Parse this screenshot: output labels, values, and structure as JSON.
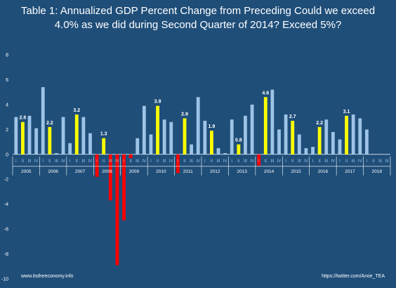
{
  "chart_data": {
    "type": "bar",
    "title_line1": "Table 1: Annualized GDP Percent Change from Preceding Could we exceed",
    "title_line2": "4.0% as we did during Second Quarter of 2014? Exceed 5%?",
    "xlabel": "",
    "ylabel": "",
    "ylim": [
      -10,
      8
    ],
    "yticks": [
      "8",
      "6",
      "4",
      "2",
      "0",
      "-2",
      "-4",
      "-6",
      "-8",
      "-10"
    ],
    "quarter_labels": [
      "I",
      "II",
      "III",
      "IV"
    ],
    "years": [
      "2005",
      "2006",
      "2007",
      "2008",
      "2009",
      "2010",
      "2011",
      "2012",
      "2013",
      "2014",
      "2015",
      "2016",
      "2017",
      "2018"
    ],
    "values": [
      3.0,
      2.6,
      3.1,
      2.1,
      5.4,
      2.2,
      0.1,
      3.0,
      0.9,
      3.2,
      3.0,
      1.7,
      -1.8,
      1.3,
      -3.7,
      -8.9,
      -5.3,
      -0.3,
      1.3,
      3.9,
      1.6,
      3.9,
      2.8,
      2.6,
      -1.5,
      2.9,
      0.8,
      4.6,
      2.7,
      1.9,
      0.5,
      0.1,
      2.8,
      0.8,
      3.1,
      4.0,
      -0.9,
      4.6,
      5.2,
      2.0,
      3.2,
      2.7,
      1.6,
      0.5,
      0.6,
      2.2,
      2.8,
      1.8,
      1.2,
      3.1,
      3.2,
      2.9,
      2.0
    ],
    "data_labels": [
      {
        "index": 1,
        "text": "2.6"
      },
      {
        "index": 5,
        "text": "2.2"
      },
      {
        "index": 9,
        "text": "3.2"
      },
      {
        "index": 13,
        "text": "1.3"
      },
      {
        "index": 21,
        "text": "3.9"
      },
      {
        "index": 25,
        "text": "2.9"
      },
      {
        "index": 29,
        "text": "1.9"
      },
      {
        "index": 33,
        "text": "0.8"
      },
      {
        "index": 37,
        "text": "4.6"
      },
      {
        "index": 41,
        "text": "2.7"
      },
      {
        "index": 45,
        "text": "2.2"
      },
      {
        "index": 49,
        "text": "3.1"
      }
    ],
    "grid": false,
    "colors": {
      "positive": "#9dc3e6",
      "second_quarter": "#ffff00",
      "negative": "#ff0000",
      "background": "#1f4e79",
      "axis": "#ffffff",
      "quarter_label": "#9dc3e6",
      "data_label": "#ffffff"
    }
  },
  "footer": {
    "left": "www.itstheeconomy.info",
    "right": "https://twitter.com/Arxie_TEA"
  }
}
